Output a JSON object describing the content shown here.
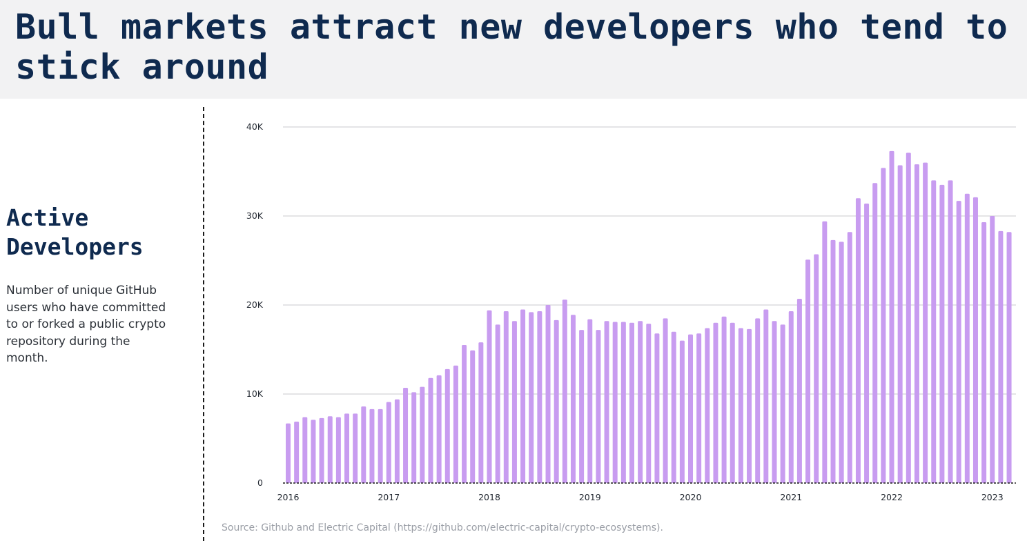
{
  "header": {
    "title": "Bull markets attract new developers who tend to stick around"
  },
  "sidebar": {
    "heading": "Active Developers",
    "description": "Number of unique GitHub users who have committed to or forked a public crypto repository during the month."
  },
  "colors": {
    "bar": "#c89cf0",
    "grid": "#c8c8cc",
    "baseline": "#1a1a1a",
    "title": "#0f2a4f",
    "header_bg": "#f2f2f3"
  },
  "chart_data": {
    "type": "bar",
    "title": "",
    "xlabel": "",
    "ylabel": "",
    "ylim": [
      0,
      40000
    ],
    "yticks": [
      0,
      10000,
      20000,
      30000,
      40000
    ],
    "ytick_labels": [
      "0",
      "10K",
      "20K",
      "30K",
      "40K"
    ],
    "xtick_labels": [
      "2016",
      "2017",
      "2018",
      "2019",
      "2020",
      "2021",
      "2022",
      "2023"
    ],
    "grid": true,
    "series": [
      {
        "values": [
          6700,
          6900,
          7400,
          7100,
          7300,
          7500,
          7400,
          7800,
          7800,
          8600,
          8300,
          8300,
          9100,
          9400,
          10700,
          10200,
          10800,
          11800,
          12100,
          12800,
          13200,
          15500,
          14900,
          15800,
          19400,
          17800,
          19300,
          18200,
          19500,
          19200,
          19300,
          20000,
          18300,
          20600,
          18900,
          17200,
          18400,
          17200,
          18200,
          18100,
          18100,
          18000,
          18200,
          17900,
          16800,
          18500,
          17000,
          16000,
          16700,
          16800,
          17400,
          18000,
          18700,
          18000,
          17400,
          17300,
          18500,
          19500,
          18200,
          17800,
          19300,
          20700,
          25100,
          25700,
          29400,
          27300,
          27100,
          28200,
          32000,
          31400,
          33700,
          35400,
          37300,
          35700,
          37100,
          35800,
          36000,
          34000,
          33500,
          34000,
          31700,
          32500,
          32100,
          29300,
          30000,
          28300,
          28200
        ]
      }
    ]
  },
  "source": "Source: Github and Electric Capital (https://github.com/electric-capital/crypto-ecosystems)."
}
